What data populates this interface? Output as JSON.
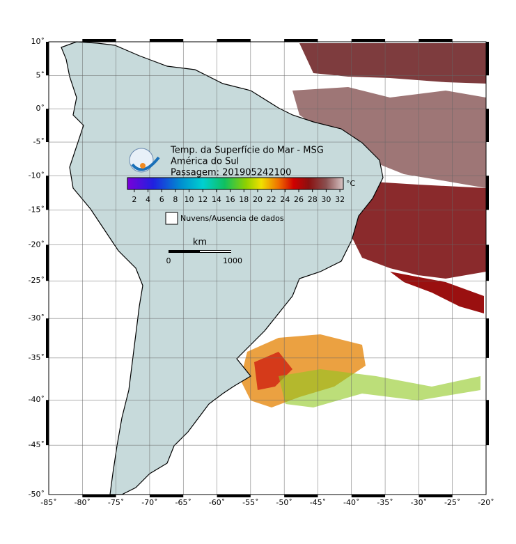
{
  "map": {
    "title": "Temp. da Superfície do Mar - MSG",
    "subtitle": "América do Sul",
    "pass": "Passagem: 201905242100",
    "lon_lim": [
      -85,
      -20
    ],
    "lat_lim": [
      -50,
      10
    ],
    "lon_ticks": [
      {
        "value": -85,
        "label": "-85˚"
      },
      {
        "value": -80,
        "label": "-80˚"
      },
      {
        "value": -75,
        "label": "-75˚"
      },
      {
        "value": -70,
        "label": "-70˚"
      },
      {
        "value": -65,
        "label": "-65˚"
      },
      {
        "value": -60,
        "label": "-60˚"
      },
      {
        "value": -55,
        "label": "-55˚"
      },
      {
        "value": -50,
        "label": "-50˚"
      },
      {
        "value": -45,
        "label": "-45˚"
      },
      {
        "value": -40,
        "label": "-40˚"
      },
      {
        "value": -35,
        "label": "-35˚"
      },
      {
        "value": -30,
        "label": "-30˚"
      },
      {
        "value": -25,
        "label": "-25˚"
      },
      {
        "value": -20,
        "label": "-20˚"
      }
    ],
    "lat_ticks": [
      {
        "value": 10,
        "label": "10˚"
      },
      {
        "value": 5,
        "label": "5˚"
      },
      {
        "value": 0,
        "label": "0˚"
      },
      {
        "value": -5,
        "label": "-5˚"
      },
      {
        "value": -10,
        "label": "-10˚"
      },
      {
        "value": -15,
        "label": "-15˚"
      },
      {
        "value": -20,
        "label": "-20˚"
      },
      {
        "value": -25,
        "label": "-25˚"
      },
      {
        "value": -30,
        "label": "-30˚"
      },
      {
        "value": -35,
        "label": "-35˚"
      },
      {
        "value": -40,
        "label": "-40˚"
      },
      {
        "value": -45,
        "label": "-45˚"
      },
      {
        "value": -50,
        "label": "-50˚"
      }
    ],
    "colorbar": {
      "lim": [
        1,
        32.5
      ],
      "ticks": [
        2,
        4,
        6,
        8,
        10,
        12,
        14,
        16,
        18,
        20,
        22,
        24,
        26,
        28,
        30,
        32
      ],
      "unit": "°C"
    },
    "legend": "Nuvens/Ausencia de dados",
    "scale": {
      "unit": "km",
      "ticks": [
        0,
        1000
      ]
    }
  }
}
